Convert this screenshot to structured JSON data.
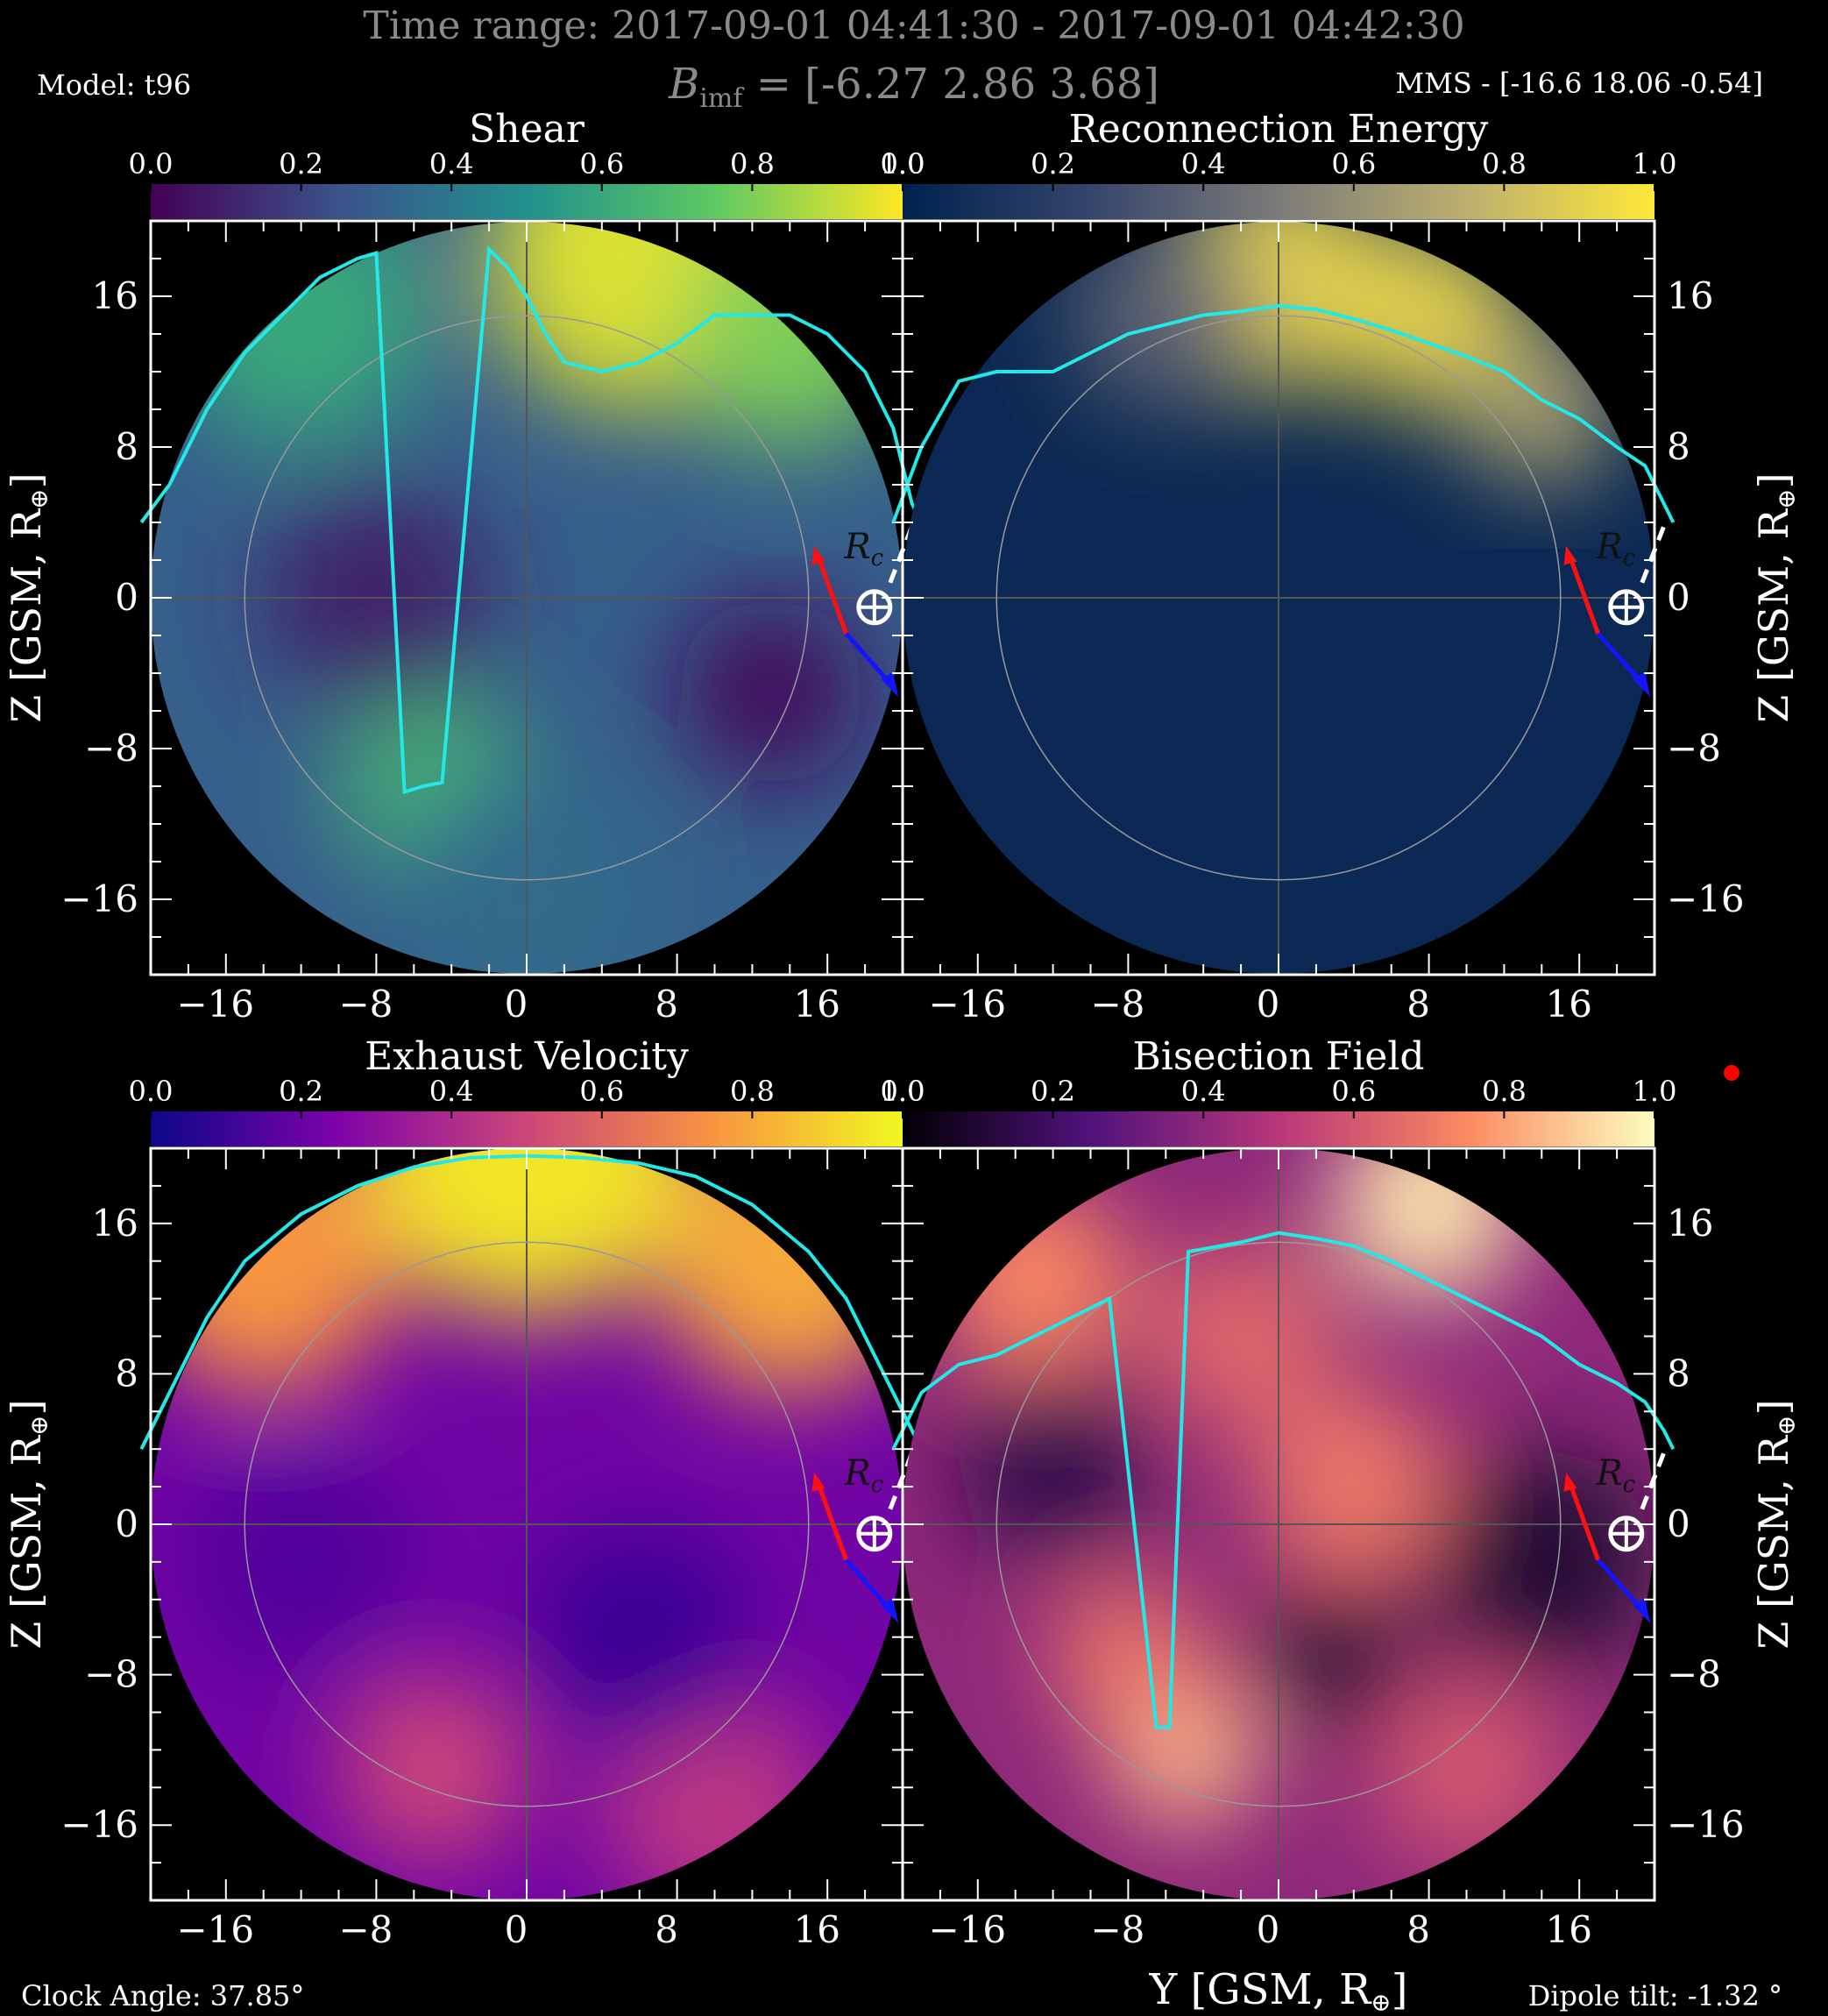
{
  "header": {
    "time_range": "Time range: 2017-09-01 04:41:30 - 2017-09-01 04:42:30",
    "bimf_label": "B",
    "bimf_sub": "imf",
    "bimf_value": " = [-6.27 2.86 3.68]",
    "model": "Model: t96",
    "mms": "MMS - [-16.6 18.06 -0.54]"
  },
  "footer": {
    "clock_angle": "Clock Angle: 37.85°",
    "dipole_tilt": "Dipole tilt: -1.32 °"
  },
  "chart_data": [
    {
      "type": "heatmap",
      "title": "Shear",
      "colormap": "viridis",
      "colorbar": {
        "ticks": [
          "0.0",
          "0.2",
          "0.4",
          "0.6",
          "0.8",
          "1.0"
        ],
        "range": [
          0,
          1
        ]
      },
      "xlabel": "Y [GSM, R",
      "ylabel": "Z [GSM, R",
      "xlim": [
        -20,
        20
      ],
      "ylim": [
        -20,
        20
      ],
      "xticks": [
        "−16",
        "−8",
        "0",
        "8",
        "16"
      ],
      "yticks": [
        "16",
        "8",
        "0",
        "−8",
        "−16"
      ],
      "ytick_side": "left",
      "blobs": [
        {
          "x": 6,
          "y": 18,
          "r": 8,
          "v": 0.95
        },
        {
          "x": 14,
          "y": 14,
          "r": 6,
          "v": 0.8
        },
        {
          "x": -12,
          "y": 15,
          "r": 7,
          "v": 0.6
        },
        {
          "x": -5,
          "y": -10,
          "r": 5,
          "v": 0.65
        },
        {
          "x": -8,
          "y": 0,
          "r": 6,
          "v": 0.1
        },
        {
          "x": 13,
          "y": -5,
          "r": 5,
          "v": 0.05
        },
        {
          "x": 0,
          "y": -16,
          "r": 7,
          "v": 0.35
        }
      ],
      "base": 0.3,
      "line": [
        [
          -20.5,
          4
        ],
        [
          -19,
          6
        ],
        [
          -17,
          10
        ],
        [
          -15,
          13
        ],
        [
          -13,
          15
        ],
        [
          -11,
          17
        ],
        [
          -9,
          18
        ],
        [
          -8,
          18.3
        ],
        [
          -6.5,
          -10.3
        ],
        [
          -5.5,
          -10
        ],
        [
          -4.5,
          -9.8
        ],
        [
          -2,
          18.5
        ],
        [
          -1,
          17.5
        ],
        [
          0,
          16
        ],
        [
          1,
          14
        ],
        [
          2,
          12.5
        ],
        [
          4,
          12
        ],
        [
          6,
          12.5
        ],
        [
          8,
          13.5
        ],
        [
          10,
          15
        ],
        [
          12,
          15
        ],
        [
          14,
          15
        ],
        [
          16,
          14
        ],
        [
          18,
          12
        ],
        [
          19.5,
          9
        ],
        [
          20.5,
          5
        ],
        [
          21,
          4
        ]
      ]
    },
    {
      "type": "heatmap",
      "title": "Reconnection Energy",
      "colormap": "cividis",
      "colorbar": {
        "ticks": [
          "0.0",
          "0.2",
          "0.4",
          "0.6",
          "0.8",
          "1.0"
        ],
        "range": [
          0,
          1
        ]
      },
      "xlabel": "",
      "ylabel": "Z [GSM, R",
      "xlim": [
        -20,
        20
      ],
      "ylim": [
        -20,
        20
      ],
      "xticks": [
        "−16",
        "−8",
        "0",
        "8",
        "16"
      ],
      "yticks": [
        "16",
        "8",
        "0",
        "−8",
        "−16"
      ],
      "ytick_side": "right",
      "blobs": [
        {
          "x": 0,
          "y": 17,
          "r": 6,
          "v": 0.9
        },
        {
          "x": 8,
          "y": 15,
          "r": 5,
          "v": 0.9
        },
        {
          "x": 14,
          "y": 10,
          "r": 4,
          "v": 0.7
        },
        {
          "x": -6,
          "y": 15,
          "r": 5,
          "v": 0.4
        }
      ],
      "base": 0.05,
      "line": [
        [
          -20.5,
          4
        ],
        [
          -19,
          8
        ],
        [
          -17,
          11.5
        ],
        [
          -15,
          12
        ],
        [
          -12,
          12
        ],
        [
          -10,
          13
        ],
        [
          -8,
          14
        ],
        [
          -6,
          14.5
        ],
        [
          -4,
          15
        ],
        [
          -2,
          15.2
        ],
        [
          0,
          15.5
        ],
        [
          2,
          15.3
        ],
        [
          4,
          14.8
        ],
        [
          6,
          14.2
        ],
        [
          8,
          13.5
        ],
        [
          10,
          12.8
        ],
        [
          12,
          12
        ],
        [
          14,
          10.5
        ],
        [
          16,
          9.5
        ],
        [
          18,
          8
        ],
        [
          19.5,
          7
        ],
        [
          20.5,
          5
        ],
        [
          21,
          4
        ]
      ]
    },
    {
      "type": "heatmap",
      "title": "Exhaust Velocity",
      "colormap": "plasma",
      "colorbar": {
        "ticks": [
          "0.0",
          "0.2",
          "0.4",
          "0.6",
          "0.8",
          "1.0"
        ],
        "range": [
          0,
          1
        ]
      },
      "xlabel": "",
      "ylabel": "Z [GSM, R",
      "xlim": [
        -20,
        20
      ],
      "ylim": [
        -20,
        20
      ],
      "xticks": [
        "−16",
        "−8",
        "0",
        "8",
        "16"
      ],
      "yticks": [
        "16",
        "8",
        "0",
        "−8",
        "−16"
      ],
      "ytick_side": "left",
      "blobs": [
        {
          "x": 0,
          "y": 20,
          "r": 9,
          "v": 0.95
        },
        {
          "x": -14,
          "y": 14,
          "r": 7,
          "v": 0.75
        },
        {
          "x": 14,
          "y": 14,
          "r": 7,
          "v": 0.8
        },
        {
          "x": -5,
          "y": -13,
          "r": 5,
          "v": 0.5
        },
        {
          "x": 10,
          "y": -15,
          "r": 6,
          "v": 0.45
        },
        {
          "x": 6,
          "y": -6,
          "r": 6,
          "v": 0.1
        },
        {
          "x": -12,
          "y": -2,
          "r": 6,
          "v": 0.15
        }
      ],
      "base": 0.22,
      "line": [
        [
          -20.5,
          4
        ],
        [
          -19,
          7
        ],
        [
          -17,
          11
        ],
        [
          -15,
          14
        ],
        [
          -12,
          16.5
        ],
        [
          -9,
          18
        ],
        [
          -6,
          19
        ],
        [
          -3,
          19.5
        ],
        [
          0,
          19.6
        ],
        [
          3,
          19.5
        ],
        [
          6,
          19.2
        ],
        [
          9,
          18.5
        ],
        [
          12,
          17
        ],
        [
          15,
          14.5
        ],
        [
          17,
          12
        ],
        [
          19,
          8
        ],
        [
          20.5,
          5
        ],
        [
          21,
          4
        ]
      ]
    },
    {
      "type": "heatmap",
      "title": "Bisection Field",
      "colormap": "magma",
      "colorbar": {
        "ticks": [
          "0.0",
          "0.2",
          "0.4",
          "0.6",
          "0.8",
          "1.0"
        ],
        "range": [
          0,
          1
        ]
      },
      "xlabel": "Y [GSM, R",
      "ylabel": "Z [GSM, R",
      "xlim": [
        -20,
        20
      ],
      "ylim": [
        -20,
        20
      ],
      "xticks": [
        "−16",
        "−8",
        "0",
        "8",
        "16"
      ],
      "yticks": [
        "16",
        "8",
        "0",
        "−8",
        "−16"
      ],
      "ytick_side": "right",
      "blobs": [
        {
          "x": 8,
          "y": 17,
          "r": 5,
          "v": 0.95
        },
        {
          "x": -13,
          "y": 13,
          "r": 5,
          "v": 0.75
        },
        {
          "x": -2,
          "y": 10,
          "r": 5,
          "v": 0.65
        },
        {
          "x": 4,
          "y": 2,
          "r": 5,
          "v": 0.7
        },
        {
          "x": -5,
          "y": -12,
          "r": 4,
          "v": 0.85
        },
        {
          "x": -8,
          "y": -7,
          "r": 4,
          "v": 0.7
        },
        {
          "x": 10,
          "y": -13,
          "r": 5,
          "v": 0.6
        },
        {
          "x": -12,
          "y": 3,
          "r": 5,
          "v": 0.15
        },
        {
          "x": 14,
          "y": -2,
          "r": 6,
          "v": 0.1
        },
        {
          "x": 3,
          "y": -7,
          "r": 4,
          "v": 0.1
        }
      ],
      "base": 0.4,
      "line": [
        [
          -20.5,
          4
        ],
        [
          -19,
          7
        ],
        [
          -17,
          8.5
        ],
        [
          -15,
          9
        ],
        [
          -13,
          10
        ],
        [
          -11,
          11
        ],
        [
          -10,
          11.5
        ],
        [
          -9,
          12
        ],
        [
          -6.5,
          -10.8
        ],
        [
          -5.8,
          -10.8
        ],
        [
          -4.8,
          14.5
        ],
        [
          -2,
          15
        ],
        [
          0,
          15.5
        ],
        [
          2,
          15.2
        ],
        [
          4,
          14.8
        ],
        [
          6,
          14
        ],
        [
          8,
          13
        ],
        [
          10,
          12
        ],
        [
          12,
          11
        ],
        [
          14,
          10
        ],
        [
          16,
          8.5
        ],
        [
          18,
          7.5
        ],
        [
          19.5,
          6.5
        ],
        [
          20.5,
          5
        ],
        [
          21,
          4
        ]
      ]
    }
  ],
  "annotations": {
    "rc_label": "R",
    "rc_sub": "c"
  }
}
